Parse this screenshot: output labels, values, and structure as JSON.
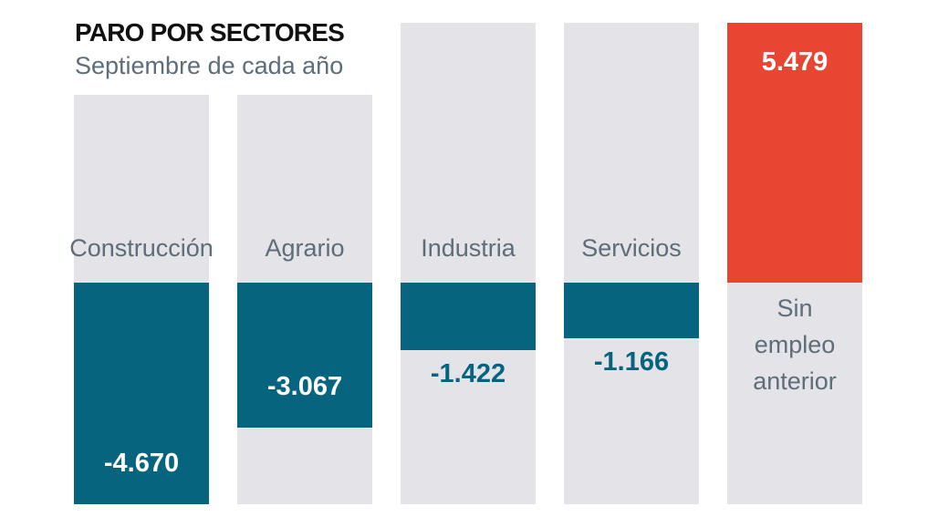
{
  "header": {
    "title": "PARO POR SECTORES",
    "subtitle": "Septiembre de cada año"
  },
  "colors": {
    "negative_bar": "#06647f",
    "positive_bar": "#e84632",
    "column_background": "#e4e3e7",
    "category_label": "#5d6d79",
    "value_on_bar": "#ffffff",
    "title_text": "#111111"
  },
  "chart_data": {
    "type": "bar",
    "title": "PARO POR SECTORES",
    "subtitle": "Septiembre de cada año",
    "categories": [
      "Construcción",
      "Agrario",
      "Industria",
      "Servicios",
      "Sin empleo anterior"
    ],
    "values": [
      -4670,
      -3067,
      -1422,
      -1166,
      5479
    ],
    "value_labels": [
      "-4.670",
      "-3.067",
      "-1.422",
      "-1.166",
      "5.479"
    ],
    "xlabel": "",
    "ylabel": "",
    "ylim": [
      -4670,
      5479
    ],
    "baseline": 0,
    "orientation": "vertical",
    "grid": "off",
    "legend": "none"
  }
}
